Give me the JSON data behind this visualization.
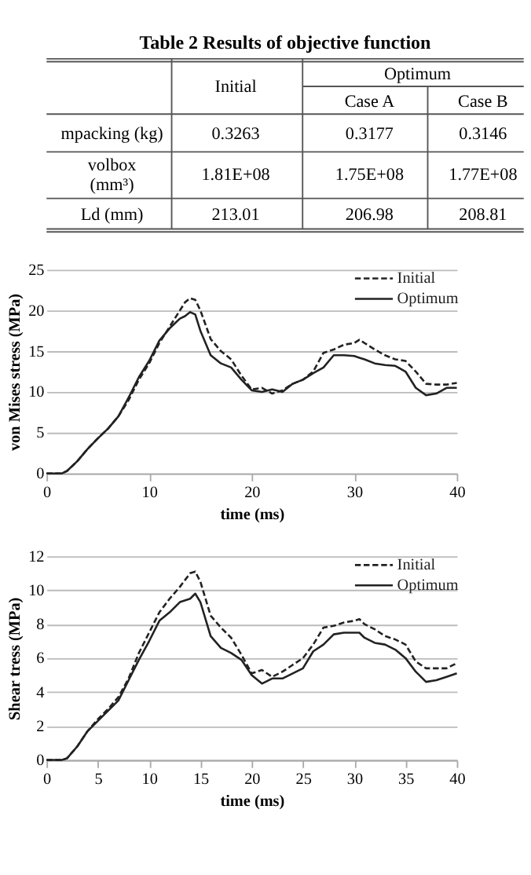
{
  "chart_data": [
    {
      "type": "other",
      "title": "Table 2  Results of objective function",
      "annotations": [
        "Initial",
        "Optimum",
        "Case A",
        "Case B",
        "mpacking (kg)",
        "0.3263",
        "0.3177",
        "0.3146",
        "volbox (mm³)",
        "1.81E+08",
        "1.75E+08",
        "1.77E+08",
        "Ld (mm)",
        "213.01",
        "206.98",
        "208.81"
      ]
    },
    {
      "type": "line",
      "xlabel": "time (ms)",
      "ylabel": "von Mises stress (MPa)",
      "xlim": [
        0,
        40
      ],
      "xticks": [
        0,
        10,
        20,
        30,
        40
      ],
      "ylim": [
        0,
        25
      ],
      "yticks": [
        0,
        5,
        10,
        15,
        20,
        25
      ],
      "grid": "y",
      "legend": "top right",
      "marker": "none",
      "x": [
        0,
        1.5,
        2,
        3,
        4,
        5,
        6,
        7,
        8,
        9,
        10,
        11,
        12,
        13,
        13.5,
        14,
        14.5,
        15,
        16,
        17,
        18,
        19,
        20,
        21,
        22,
        23,
        24,
        25,
        26,
        27,
        28,
        29,
        30,
        30.5,
        31,
        32,
        33,
        34,
        35,
        36,
        37,
        38,
        39,
        40
      ],
      "series": [
        {
          "name": "Initial",
          "color": "#222222",
          "line_style": "dashed",
          "values": [
            0,
            0,
            0.3,
            1.5,
            3,
            4.3,
            5.5,
            7,
            9,
            11.5,
            13.5,
            16,
            18,
            20,
            21,
            21.5,
            21.3,
            20,
            16.5,
            15,
            14,
            12,
            10.3,
            10.5,
            9.8,
            10.2,
            11,
            11.5,
            12.5,
            14.8,
            15.2,
            15.8,
            16,
            16.4,
            16,
            15.2,
            14.5,
            14,
            13.8,
            12.5,
            11,
            10.9,
            10.9,
            11.1
          ]
        },
        {
          "name": "Optimum",
          "color": "#222222",
          "line_style": "solid",
          "values": [
            0,
            0,
            0.3,
            1.5,
            3,
            4.3,
            5.5,
            7,
            9.3,
            11.8,
            13.8,
            16.3,
            17.8,
            19,
            19.3,
            19.8,
            19.5,
            17.5,
            14.5,
            13.5,
            13,
            11.5,
            10.2,
            10,
            10.3,
            10,
            11,
            11.5,
            12.3,
            13,
            14.5,
            14.5,
            14.4,
            14.2,
            14,
            13.5,
            13.3,
            13.2,
            12.5,
            10.5,
            9.6,
            9.8,
            10.5,
            10.5
          ]
        }
      ]
    },
    {
      "type": "line",
      "xlabel": "time (ms)",
      "ylabel": "Shear tress (MPa)",
      "xlim": [
        0,
        40
      ],
      "xticks": [
        0,
        5,
        10,
        15,
        20,
        25,
        30,
        35,
        40
      ],
      "ylim": [
        0,
        12
      ],
      "yticks": [
        0,
        2,
        4,
        6,
        8,
        10,
        12
      ],
      "grid": "y",
      "legend": "top right",
      "marker": "none",
      "x": [
        0,
        1.5,
        2,
        3,
        4,
        5,
        6,
        7,
        8,
        9,
        10,
        11,
        12,
        13,
        14,
        14.5,
        15,
        16,
        17,
        18,
        19,
        20,
        21,
        22,
        23,
        24,
        25,
        26,
        27,
        28,
        29,
        30,
        30.5,
        31,
        32,
        33,
        34,
        35,
        36,
        37,
        38,
        39,
        40
      ],
      "series": [
        {
          "name": "Initial",
          "color": "#222222",
          "line_style": "dashed",
          "values": [
            0,
            0,
            0.1,
            0.8,
            1.7,
            2.4,
            3,
            3.7,
            4.8,
            6.3,
            7.5,
            8.7,
            9.5,
            10.2,
            11,
            11.1,
            10.5,
            8.5,
            7.8,
            7.2,
            6.2,
            5.1,
            5.3,
            4.9,
            5.2,
            5.6,
            6,
            6.8,
            7.8,
            7.9,
            8.1,
            8.2,
            8.3,
            8,
            7.7,
            7.3,
            7.1,
            6.8,
            5.8,
            5.4,
            5.4,
            5.4,
            5.7
          ]
        },
        {
          "name": "Optimum",
          "color": "#222222",
          "line_style": "solid",
          "values": [
            0,
            0,
            0.1,
            0.8,
            1.7,
            2.3,
            2.9,
            3.5,
            4.7,
            5.9,
            7,
            8.2,
            8.7,
            9.3,
            9.5,
            9.8,
            9.3,
            7.3,
            6.6,
            6.3,
            5.9,
            5,
            4.5,
            4.8,
            4.8,
            5.1,
            5.4,
            6.4,
            6.8,
            7.4,
            7.5,
            7.5,
            7.5,
            7.2,
            6.9,
            6.8,
            6.5,
            6,
            5.2,
            4.6,
            4.7,
            4.9,
            5.1
          ]
        }
      ]
    }
  ]
}
